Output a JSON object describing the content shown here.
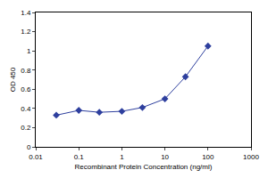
{
  "chart_data": {
    "type": "line",
    "x_label": "Recombinant Protein Concentration (ng/ml)",
    "y_label": "OD 450",
    "x": [
      0.03,
      0.1,
      0.3,
      1,
      3,
      10,
      30,
      100
    ],
    "values": [
      0.33,
      0.38,
      0.36,
      0.37,
      0.41,
      0.5,
      0.73,
      1.05
    ],
    "color": "#2e3f9e",
    "marker": "diamond",
    "log": "x",
    "xlim": [
      0.01,
      1000
    ],
    "xticks": [
      0.01,
      0.1,
      1,
      10,
      100,
      1000
    ],
    "ylim": [
      0,
      1.4
    ],
    "yticks": [
      0,
      0.2,
      0.4,
      0.6,
      0.8,
      1,
      1.2,
      1.4
    ],
    "grid": false
  }
}
